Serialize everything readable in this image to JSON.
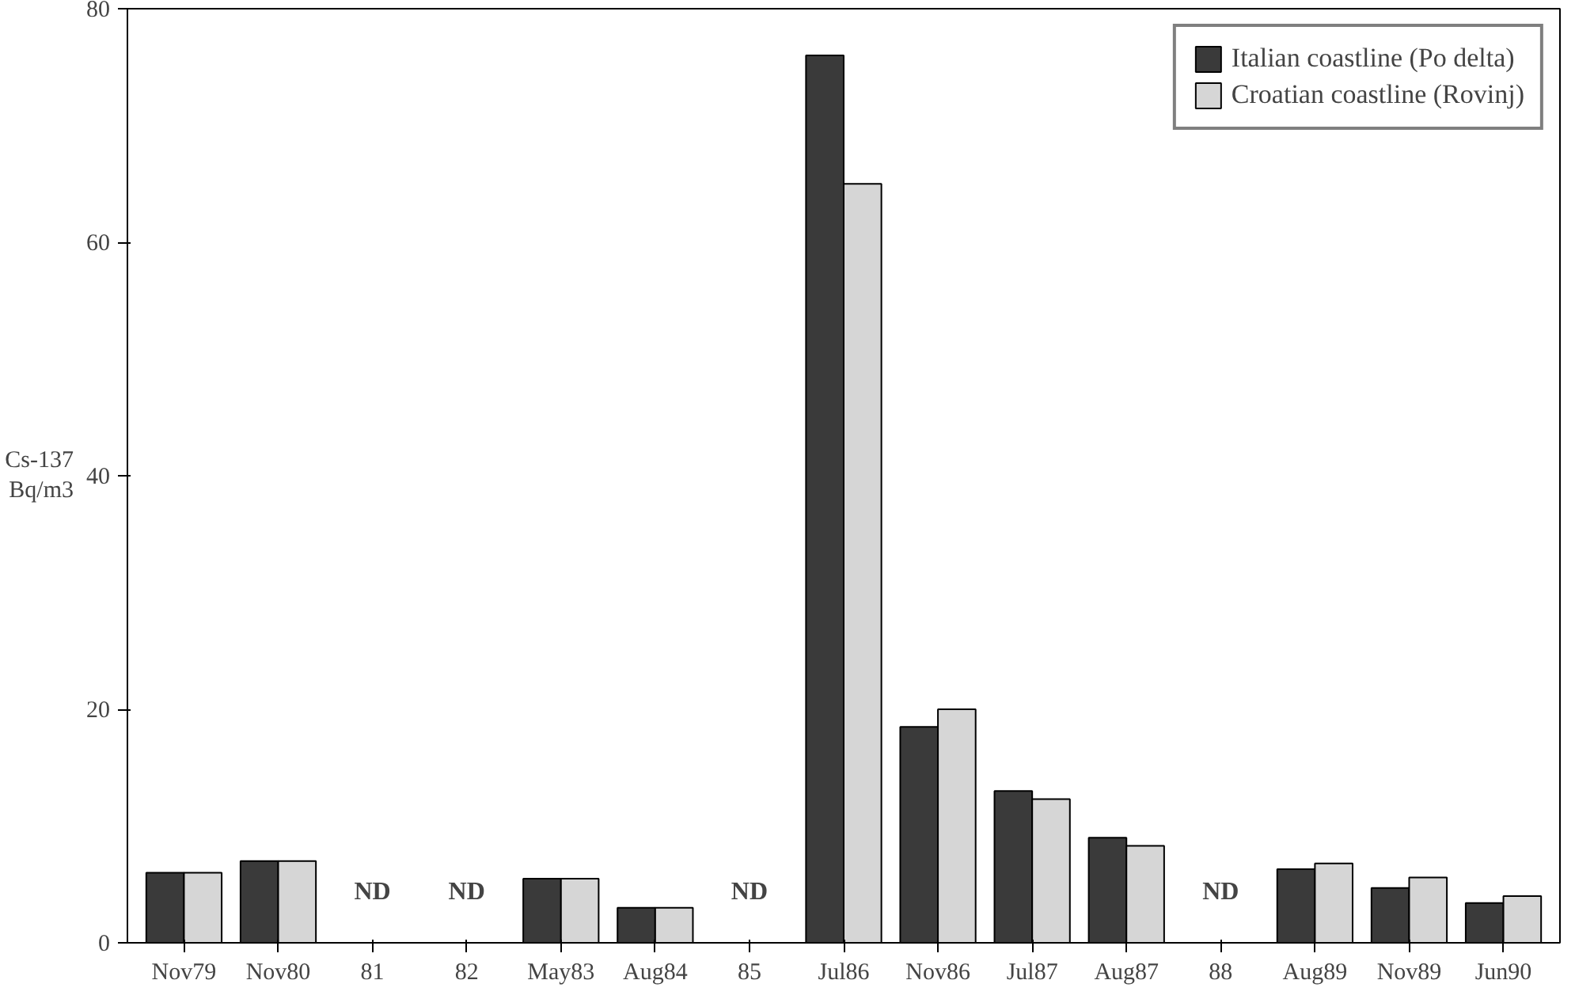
{
  "chart_data": {
    "type": "bar",
    "ylabel": "Cs-137\nBq/m3",
    "categories": [
      "Nov79",
      "Nov80",
      "81",
      "82",
      "May83",
      "Aug84",
      "85",
      "Jul86",
      "Nov86",
      "Jul87",
      "Aug87",
      "88",
      "Aug89",
      "Nov89",
      "Jun90"
    ],
    "series": [
      {
        "name": "Italian coastline (Po delta)",
        "color": "#3a3a3a",
        "values": [
          6,
          7,
          null,
          null,
          5.5,
          3,
          null,
          76,
          18.5,
          13,
          9,
          null,
          6.3,
          4.7,
          3.4
        ]
      },
      {
        "name": "Croatian coastline (Rovinj)",
        "color": "#d6d6d6",
        "values": [
          6,
          7,
          null,
          null,
          5.5,
          3,
          null,
          65,
          20,
          12.3,
          8.3,
          null,
          6.8,
          5.6,
          4
        ]
      }
    ],
    "annotations": [
      "ND",
      "ND",
      "ND",
      "ND"
    ],
    "ylim": [
      0,
      80
    ],
    "yticks": [
      0,
      20,
      40,
      60,
      80
    ],
    "grid": false,
    "legend": "top right"
  }
}
